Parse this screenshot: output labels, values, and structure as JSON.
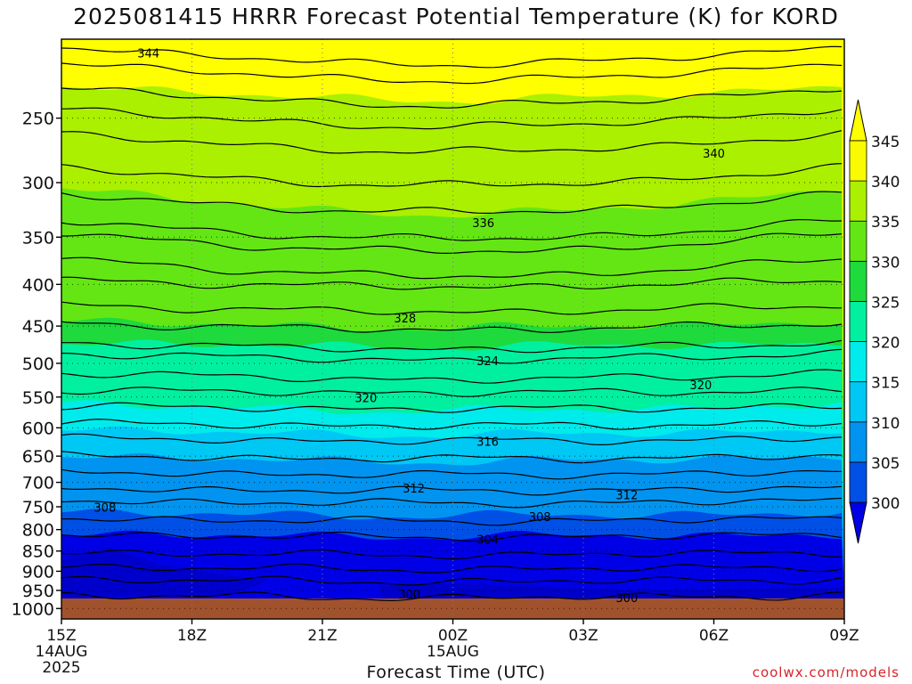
{
  "chart_data": {
    "type": "heatmap",
    "title": "2025081415 HRRR Forecast Potential Temperature (K) for KORD",
    "xlabel": "Forecast Time (UTC)",
    "credit": "coolwx.com/models",
    "x_ticks": [
      {
        "hours": 0,
        "lines": [
          "15Z",
          "14AUG",
          "2025"
        ]
      },
      {
        "hours": 3,
        "lines": [
          "18Z"
        ]
      },
      {
        "hours": 6,
        "lines": [
          "21Z"
        ]
      },
      {
        "hours": 9,
        "lines": [
          "00Z",
          "15AUG"
        ]
      },
      {
        "hours": 12,
        "lines": [
          "03Z"
        ]
      },
      {
        "hours": 15,
        "lines": [
          "06Z"
        ]
      },
      {
        "hours": 18,
        "lines": [
          "09Z"
        ]
      }
    ],
    "y_ticks": [
      250,
      300,
      350,
      400,
      450,
      500,
      550,
      600,
      650,
      700,
      750,
      800,
      850,
      900,
      950,
      1000
    ],
    "ylim": [
      1030,
      200
    ],
    "xlim": [
      0,
      18
    ],
    "colorbar": {
      "levels": [
        300,
        305,
        310,
        315,
        320,
        325,
        330,
        335,
        340,
        345
      ],
      "colors": [
        "#0000e6",
        "#0050e6",
        "#0094f0",
        "#00c8f5",
        "#00ebeb",
        "#00f0a0",
        "#1eda3c",
        "#64e614",
        "#aaf000",
        "#fafa00",
        "#ffff00"
      ]
    },
    "ground_color": "#a0522d",
    "contour_labels": [
      {
        "text": "344",
        "hours": 2.0,
        "pres": 208
      },
      {
        "text": "340",
        "hours": 15.0,
        "pres": 276
      },
      {
        "text": "336",
        "hours": 9.7,
        "pres": 336
      },
      {
        "text": "328",
        "hours": 7.9,
        "pres": 440
      },
      {
        "text": "324",
        "hours": 9.8,
        "pres": 496
      },
      {
        "text": "320",
        "hours": 7.0,
        "pres": 551
      },
      {
        "text": "320",
        "hours": 14.7,
        "pres": 531
      },
      {
        "text": "316",
        "hours": 9.8,
        "pres": 623
      },
      {
        "text": "312",
        "hours": 8.1,
        "pres": 711
      },
      {
        "text": "312",
        "hours": 13.0,
        "pres": 725
      },
      {
        "text": "308",
        "hours": 1.0,
        "pres": 751
      },
      {
        "text": "308",
        "hours": 11.0,
        "pres": 771
      },
      {
        "text": "304",
        "hours": 9.8,
        "pres": 822
      },
      {
        "text": "300",
        "hours": 8.0,
        "pres": 960
      },
      {
        "text": "300",
        "hours": 13.0,
        "pres": 970
      }
    ]
  }
}
